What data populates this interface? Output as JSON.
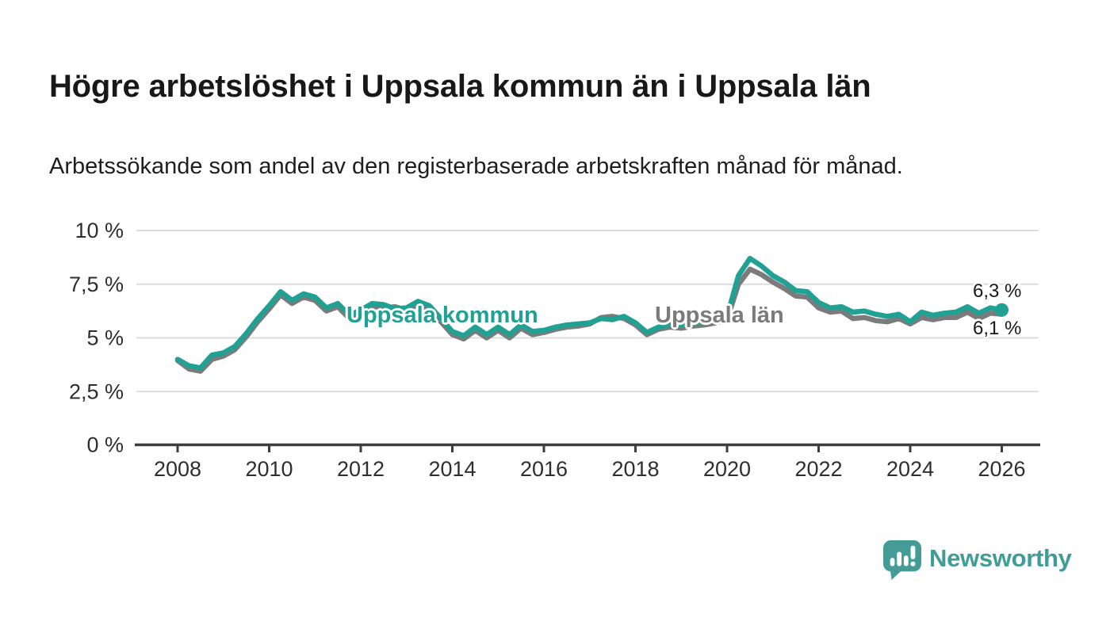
{
  "header": {
    "title": "Högre arbetslöshet i Uppsala kommun än i Uppsala län",
    "subtitle": "Arbetssökande som andel av den registerbaserade arbetskraften månad för månad."
  },
  "chart_data": {
    "type": "line",
    "title": "Högre arbetslöshet i Uppsala kommun än i Uppsala län",
    "xlabel": "",
    "ylabel": "",
    "x_start": 2008,
    "x_step_years": 0.25,
    "xlim": [
      2007.1,
      2026.85
    ],
    "ylim": [
      0,
      10.4
    ],
    "grid": "horizontal",
    "y_ticks": [
      {
        "v": 0,
        "label": "0 %"
      },
      {
        "v": 2.5,
        "label": "2,5 %"
      },
      {
        "v": 5,
        "label": "5 %"
      },
      {
        "v": 7.5,
        "label": "7,5 %"
      },
      {
        "v": 10,
        "label": "10 %"
      }
    ],
    "x_ticks": [
      {
        "year": 2008,
        "label": "2008"
      },
      {
        "year": 2010,
        "label": "2010"
      },
      {
        "year": 2012,
        "label": "2012"
      },
      {
        "year": 2014,
        "label": "2014"
      },
      {
        "year": 2016,
        "label": "2016"
      },
      {
        "year": 2018,
        "label": "2018"
      },
      {
        "year": 2020,
        "label": "2020"
      },
      {
        "year": 2022,
        "label": "2022"
      },
      {
        "year": 2024,
        "label": "2024"
      },
      {
        "year": 2026,
        "label": "2026"
      }
    ],
    "series": [
      {
        "name": "Uppsala kommun",
        "color": "#21A094",
        "end_value_label": "6,3 %",
        "end_dot": true,
        "values": [
          4.0,
          3.7,
          3.6,
          4.2,
          4.3,
          4.6,
          5.2,
          5.9,
          6.5,
          7.15,
          6.75,
          7.05,
          6.9,
          6.4,
          6.6,
          6.05,
          6.3,
          6.6,
          6.55,
          6.35,
          6.4,
          6.7,
          6.5,
          5.9,
          5.3,
          5.1,
          5.5,
          5.15,
          5.5,
          5.15,
          5.6,
          5.3,
          5.35,
          5.5,
          5.6,
          5.65,
          5.7,
          5.9,
          5.85,
          6.0,
          5.7,
          5.25,
          5.5,
          5.6,
          5.6,
          5.7,
          5.75,
          5.85,
          6.0,
          7.9,
          8.7,
          8.35,
          7.9,
          7.6,
          7.2,
          7.15,
          6.65,
          6.4,
          6.45,
          6.2,
          6.25,
          6.1,
          6.0,
          6.1,
          5.75,
          6.2,
          6.05,
          6.15,
          6.2,
          6.45,
          6.15,
          6.4,
          6.3
        ]
      },
      {
        "name": "Uppsala län",
        "color": "#7B7B7B",
        "end_value_label": "6,1 %",
        "end_dot": false,
        "values": [
          3.95,
          3.55,
          3.45,
          4.0,
          4.15,
          4.45,
          5.05,
          5.75,
          6.35,
          7.0,
          6.6,
          6.9,
          6.75,
          6.25,
          6.45,
          5.9,
          6.15,
          6.45,
          6.4,
          6.45,
          6.3,
          6.55,
          6.35,
          5.75,
          5.15,
          4.95,
          5.35,
          5.0,
          5.35,
          5.0,
          5.45,
          5.15,
          5.25,
          5.4,
          5.5,
          5.55,
          5.65,
          5.95,
          6.0,
          5.9,
          5.6,
          5.15,
          5.4,
          5.5,
          5.45,
          5.55,
          5.6,
          5.7,
          5.85,
          7.5,
          8.2,
          7.95,
          7.6,
          7.3,
          6.95,
          6.9,
          6.4,
          6.2,
          6.25,
          5.9,
          5.95,
          5.8,
          5.75,
          5.9,
          5.65,
          5.95,
          5.85,
          5.95,
          5.95,
          6.2,
          5.9,
          6.15,
          6.1
        ]
      }
    ]
  },
  "annotations": {
    "series_label_kommun": "Uppsala kommun",
    "series_label_lan": "Uppsala län",
    "end_label_top": "6,3 %",
    "end_label_bottom": "6,1 %"
  },
  "branding": {
    "wordmark": "Newsworthy",
    "icon": "newsworthy-speech-bubble-bar-chart-icon",
    "color": "#3F9C96"
  },
  "colors": {
    "kommun_line": "#21A094",
    "lan_line": "#7B7B7B",
    "grid": "#DCDCDC",
    "axis": "#3D3D3D",
    "tick_text": "#2E2E2E",
    "title_text": "#181818",
    "background": "#FFFFFF"
  }
}
